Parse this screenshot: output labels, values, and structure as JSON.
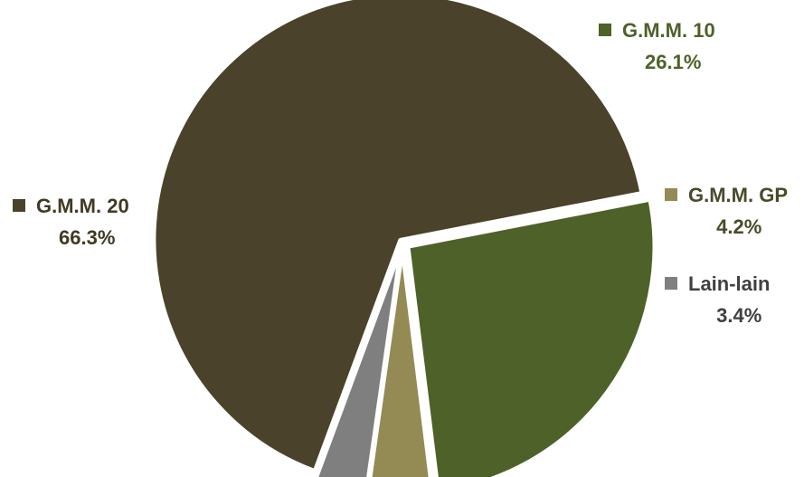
{
  "chart_data": {
    "type": "pie",
    "title": "",
    "slices": [
      {
        "label": "G.M.M. 10",
        "value": 26.1,
        "value_label": "26.1%",
        "color": "#4e6128",
        "label_color": "#4e6128"
      },
      {
        "label": "G.M.M. GP",
        "value": 4.2,
        "value_label": "4.2%",
        "color": "#948a54",
        "label_color": "#4a4a2a"
      },
      {
        "label": "Lain-lain",
        "value": 3.4,
        "value_label": "3.4%",
        "color": "#7f7f7f",
        "label_color": "#404040"
      },
      {
        "label": "G.M.M. 20",
        "value": 66.3,
        "value_label": "66.3%",
        "color": "#4a422a",
        "label_color": "#403a24"
      }
    ],
    "start_angle_deg": -11,
    "direction": "clockwise",
    "exploded": true,
    "legend": "none (labels beside slices)"
  }
}
